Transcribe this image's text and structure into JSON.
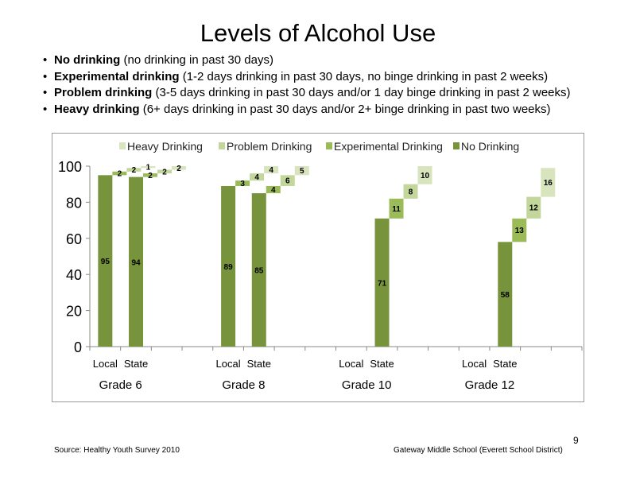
{
  "slide": {
    "title": "Levels  of Alcohol  Use",
    "bullets": [
      {
        "term": "No drinking",
        "desc": " (no drinking in past 30 days)"
      },
      {
        "term": "Experimental  drinking",
        "desc": " (1-2 days drinking in past 30 days, no binge drinking in past 2 weeks)"
      },
      {
        "term": "Problem drinking",
        "desc": " (3-5 days drinking in past 30 days and/or 1 day binge drinking in past 2 weeks)"
      },
      {
        "term": "Heavy drinking",
        "desc": " (6+ days drinking in past 30 days and/or 2+ binge drinking in past two weeks)"
      }
    ],
    "source": "Source: Healthy Youth Survey 2010",
    "school": "Gateway Middle  School (Everett School District)",
    "page_number": "9"
  },
  "chart_data": {
    "type": "bar",
    "subtype": "waterfall-stacked",
    "ylim": [
      0,
      100
    ],
    "yticks": [
      0,
      20,
      40,
      60,
      80,
      100
    ],
    "groups": [
      "Grade 6",
      "Grade 8",
      "Grade 10",
      "Grade 12"
    ],
    "subcategories": [
      "Local",
      "State"
    ],
    "legend": {
      "position": "top",
      "entries": [
        "Heavy Drinking",
        "Problem Drinking",
        "Experimental Drinking",
        "No Drinking"
      ]
    },
    "series": [
      {
        "name": "No Drinking",
        "color": "#77933c",
        "values": [
          95,
          94,
          89,
          85,
          null,
          71,
          null,
          58
        ]
      },
      {
        "name": "Experimental Drinking",
        "color": "#9bbb59",
        "values": [
          2,
          2,
          3,
          4,
          null,
          11,
          null,
          13
        ]
      },
      {
        "name": "Problem Drinking",
        "color": "#c3d69b",
        "values": [
          2,
          2,
          4,
          6,
          null,
          8,
          null,
          12
        ]
      },
      {
        "name": "Heavy Drinking",
        "color": "#d7e4bd",
        "values": [
          1,
          2,
          4,
          5,
          null,
          10,
          null,
          16
        ]
      }
    ],
    "series_order_in_stack": [
      "No Drinking",
      "Experimental Drinking",
      "Problem Drinking",
      "Heavy Drinking"
    ]
  }
}
